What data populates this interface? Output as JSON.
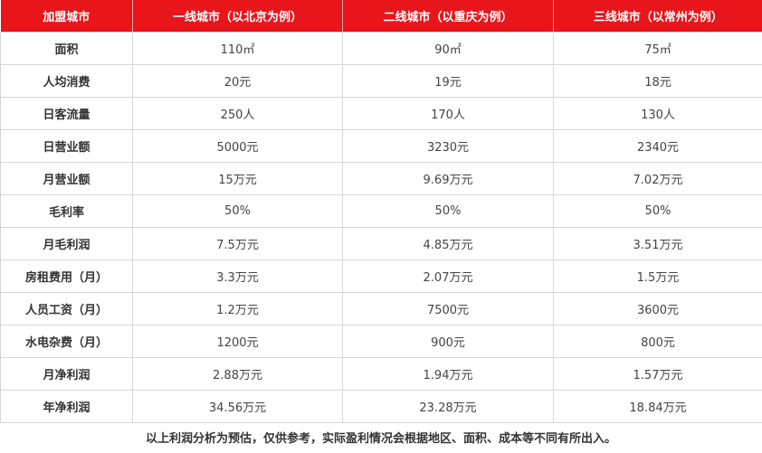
{
  "header": [
    "加盟城市",
    "一线城市（以北京为例）",
    "二线城市（以重庆为例）",
    "三线城市（以常州为例）"
  ],
  "rows": [
    {
      "label": "面积",
      "tier1": "110㎡",
      "tier2": "90㎡",
      "tier3": "75㎡"
    },
    {
      "label": "人均消费",
      "tier1": "20元",
      "tier2": "19元",
      "tier3": "18元"
    },
    {
      "label": "日客流量",
      "tier1": "250人",
      "tier2": "170人",
      "tier3": "130人"
    },
    {
      "label": "日营业额",
      "tier1": "5000元",
      "tier2": "3230元",
      "tier3": "2340元"
    },
    {
      "label": "月营业额",
      "tier1": "15万元",
      "tier2": "9.69万元",
      "tier3": "7.02万元"
    },
    {
      "label": "毛利率",
      "tier1": "50%",
      "tier2": "50%",
      "tier3": "50%"
    },
    {
      "label": "月毛利润",
      "tier1": "7.5万元",
      "tier2": "4.85万元",
      "tier3": "3.51万元"
    },
    {
      "label": "房租费用（月）",
      "tier1": "3.3万元",
      "tier2": "2.07万元",
      "tier3": "1.5万元"
    },
    {
      "label": "人员工资（月）",
      "tier1": "1.2万元",
      "tier2": "7500元",
      "tier3": "3600元"
    },
    {
      "label": "水电杂费（月）",
      "tier1": "1200元",
      "tier2": "900元",
      "tier3": "800元"
    },
    {
      "label": "月净利润",
      "tier1": "2.88万元",
      "tier2": "1.94万元",
      "tier3": "1.57万元"
    },
    {
      "label": "年净利润",
      "tier1": "34.56万元",
      "tier2": "23.28万元",
      "tier3": "18.84万元"
    }
  ],
  "note": "以上利润分析为预估，仅供参考，实际盈利情况会根据地区、面积、成本等不同有所出入。",
  "colors": {
    "header_bg": "#e8151b",
    "header_text": "#ffffff",
    "grid_line": "#d6d6d6"
  }
}
